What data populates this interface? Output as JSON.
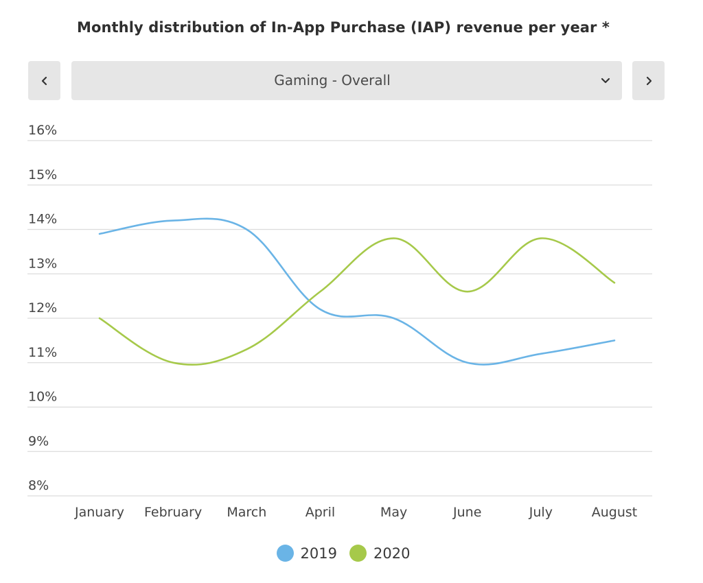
{
  "header": {
    "title": "Monthly distribution of In-App Purchase (IAP) revenue per year *"
  },
  "selector": {
    "value": "Gaming - Overall",
    "prev_icon": "chevron-left-icon",
    "next_icon": "chevron-right-icon",
    "dropdown_icon": "chevron-down-icon"
  },
  "colors": {
    "series_2019": "#6ab4e6",
    "series_2020": "#a6c94a",
    "grid": "#dcdcdc",
    "tick_text": "#444444"
  },
  "chart_data": {
    "type": "line",
    "title": "Monthly distribution of In-App Purchase (IAP) revenue per year *",
    "xlabel": "",
    "ylabel": "",
    "categories": [
      "January",
      "February",
      "March",
      "April",
      "May",
      "June",
      "July",
      "August"
    ],
    "yticks": [
      "16%",
      "15%",
      "14%",
      "13%",
      "12%",
      "11%",
      "10%",
      "9%",
      "8%"
    ],
    "ylim": [
      8,
      16
    ],
    "grid": true,
    "legend_position": "bottom",
    "series": [
      {
        "name": "2019",
        "values": [
          13.9,
          14.2,
          14.0,
          12.2,
          12.0,
          11.0,
          11.2,
          11.5
        ]
      },
      {
        "name": "2020",
        "values": [
          12.0,
          11.0,
          11.3,
          12.6,
          13.8,
          12.6,
          13.8,
          12.8
        ]
      }
    ]
  }
}
